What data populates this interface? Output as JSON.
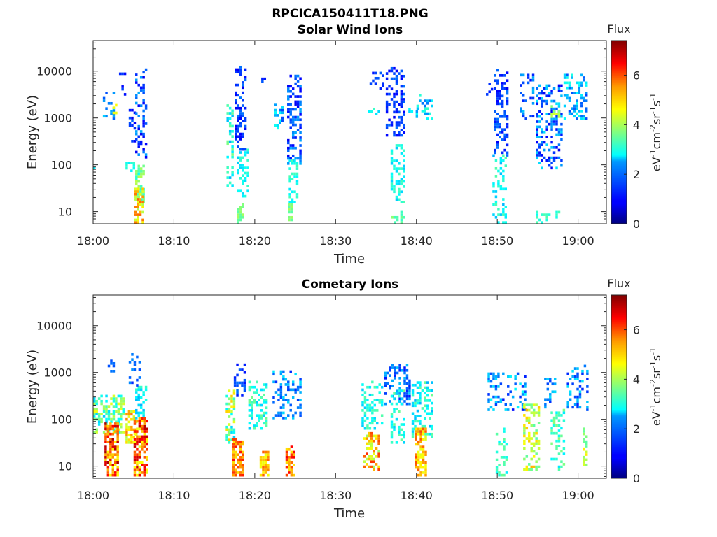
{
  "figure": {
    "title": "RPCICA150411T18.PNG",
    "background": "#ffffff"
  },
  "colorbar": {
    "title": "Flux",
    "label_parts": [
      "eV",
      "-1",
      "cm",
      "-2",
      "sr",
      "-1",
      "s",
      "-1"
    ],
    "ticks": [
      0,
      2,
      4,
      6
    ],
    "range": [
      0,
      7.4
    ],
    "colormap": "jet"
  },
  "chart_data": [
    {
      "type": "heatmap",
      "title": "Solar Wind Ions",
      "xlabel": "Time",
      "ylabel": "Energy (eV)",
      "x_ticks": [
        "18:00",
        "18:10",
        "18:20",
        "18:30",
        "18:40",
        "18:50",
        "19:00"
      ],
      "x_range_minutes": [
        0,
        63.5
      ],
      "y_scale": "log",
      "y_range": [
        5.5,
        45000
      ],
      "y_ticks": [
        10,
        100,
        1000,
        10000
      ],
      "y_tick_labels": [
        "10",
        "100",
        "1000",
        "10000"
      ],
      "clusters": [
        {
          "t_start": 0.0,
          "t_end": 0.3,
          "e_min": 70,
          "e_max": 110,
          "flux": [
            2.5,
            2.8
          ],
          "density": 0.5
        },
        {
          "t_start": 1.2,
          "t_end": 2.6,
          "e_min": 900,
          "e_max": 3500,
          "flux": [
            1.3,
            2.6
          ],
          "density": 0.3
        },
        {
          "t_start": 2.4,
          "t_end": 2.9,
          "e_min": 1200,
          "e_max": 1800,
          "flux": [
            4.0,
            5.0
          ],
          "density": 0.6
        },
        {
          "t_start": 3.2,
          "t_end": 4.0,
          "e_min": 3000,
          "e_max": 12000,
          "flux": [
            0.8,
            1.5
          ],
          "density": 0.25
        },
        {
          "t_start": 4.4,
          "t_end": 5.2,
          "e_min": 300,
          "e_max": 1500,
          "flux": [
            0.8,
            1.8
          ],
          "density": 0.35
        },
        {
          "t_start": 4.0,
          "t_end": 5.0,
          "e_min": 70,
          "e_max": 120,
          "flux": [
            2.6,
            3.2
          ],
          "density": 0.45
        },
        {
          "t_start": 5.2,
          "t_end": 6.6,
          "e_min": 120,
          "e_max": 11000,
          "flux": [
            0.8,
            2.2
          ],
          "density": 0.35
        },
        {
          "t_start": 5.2,
          "t_end": 6.3,
          "e_min": 15,
          "e_max": 90,
          "flux": [
            2.8,
            4.2
          ],
          "density": 0.55
        },
        {
          "t_start": 5.1,
          "t_end": 6.0,
          "e_min": 5.5,
          "e_max": 30,
          "flux": [
            3.8,
            5.8
          ],
          "density": 0.7
        },
        {
          "t_start": 16.5,
          "t_end": 17.2,
          "e_min": 30,
          "e_max": 1800,
          "flux": [
            2.2,
            3.8
          ],
          "density": 0.35
        },
        {
          "t_start": 17.5,
          "t_end": 19.0,
          "e_min": 200,
          "e_max": 13000,
          "flux": [
            0.8,
            1.8
          ],
          "density": 0.4
        },
        {
          "t_start": 17.8,
          "t_end": 19.2,
          "e_min": 20,
          "e_max": 200,
          "flux": [
            2.4,
            3.2
          ],
          "density": 0.4
        },
        {
          "t_start": 17.8,
          "t_end": 18.6,
          "e_min": 5.5,
          "e_max": 15,
          "flux": [
            3.4,
            4.0
          ],
          "density": 0.6
        },
        {
          "t_start": 20.8,
          "t_end": 21.4,
          "e_min": 5000,
          "e_max": 8000,
          "flux": [
            1.0,
            1.6
          ],
          "density": 0.4
        },
        {
          "t_start": 22.4,
          "t_end": 23.4,
          "e_min": 500,
          "e_max": 2000,
          "flux": [
            1.4,
            3.0
          ],
          "density": 0.3
        },
        {
          "t_start": 24.0,
          "t_end": 25.8,
          "e_min": 100,
          "e_max": 8000,
          "flux": [
            0.8,
            2.2
          ],
          "density": 0.4
        },
        {
          "t_start": 24.2,
          "t_end": 25.4,
          "e_min": 15,
          "e_max": 120,
          "flux": [
            2.6,
            3.4
          ],
          "density": 0.45
        },
        {
          "t_start": 24.1,
          "t_end": 24.6,
          "e_min": 5.5,
          "e_max": 15,
          "flux": [
            3.4,
            4.0
          ],
          "density": 0.7
        },
        {
          "t_start": 34.0,
          "t_end": 35.2,
          "e_min": 1000,
          "e_max": 1800,
          "flux": [
            2.4,
            3.2
          ],
          "density": 0.3
        },
        {
          "t_start": 34.2,
          "t_end": 35.8,
          "e_min": 4000,
          "e_max": 9000,
          "flux": [
            1.0,
            1.6
          ],
          "density": 0.25
        },
        {
          "t_start": 36.2,
          "t_end": 38.4,
          "e_min": 400,
          "e_max": 12000,
          "flux": [
            0.8,
            1.8
          ],
          "density": 0.4
        },
        {
          "t_start": 36.8,
          "t_end": 38.4,
          "e_min": 15,
          "e_max": 250,
          "flux": [
            2.4,
            3.4
          ],
          "density": 0.4
        },
        {
          "t_start": 36.9,
          "t_end": 37.5,
          "e_min": 5.5,
          "e_max": 8,
          "flux": [
            3.2,
            3.8
          ],
          "density": 0.6
        },
        {
          "t_start": 39.0,
          "t_end": 40.0,
          "e_min": 1000,
          "e_max": 1500,
          "flux": [
            2.0,
            2.8
          ],
          "density": 0.35
        },
        {
          "t_start": 40.0,
          "t_end": 41.9,
          "e_min": 900,
          "e_max": 3000,
          "flux": [
            1.6,
            3.2
          ],
          "density": 0.35
        },
        {
          "t_start": 38.0,
          "t_end": 38.5,
          "e_min": 5.5,
          "e_max": 10,
          "flux": [
            3.0,
            3.6
          ],
          "density": 0.5
        },
        {
          "t_start": 48.6,
          "t_end": 49.2,
          "e_min": 3000,
          "e_max": 5000,
          "flux": [
            1.0,
            1.5
          ],
          "density": 0.4
        },
        {
          "t_start": 49.6,
          "t_end": 51.2,
          "e_min": 150,
          "e_max": 11000,
          "flux": [
            0.8,
            1.8
          ],
          "density": 0.4
        },
        {
          "t_start": 49.4,
          "t_end": 51.0,
          "e_min": 5.5,
          "e_max": 150,
          "flux": [
            2.2,
            3.4
          ],
          "density": 0.3
        },
        {
          "t_start": 52.8,
          "t_end": 54.4,
          "e_min": 900,
          "e_max": 8000,
          "flux": [
            1.0,
            2.4
          ],
          "density": 0.3
        },
        {
          "t_start": 54.8,
          "t_end": 57.8,
          "e_min": 80,
          "e_max": 5000,
          "flux": [
            0.8,
            2.6
          ],
          "density": 0.35
        },
        {
          "t_start": 56.6,
          "t_end": 57.5,
          "e_min": 1000,
          "e_max": 1800,
          "flux": [
            3.6,
            4.4
          ],
          "density": 0.5
        },
        {
          "t_start": 54.8,
          "t_end": 57.5,
          "e_min": 5.5,
          "e_max": 10,
          "flux": [
            2.8,
            3.4
          ],
          "density": 0.35
        },
        {
          "t_start": 58.2,
          "t_end": 61.0,
          "e_min": 900,
          "e_max": 8000,
          "flux": [
            1.4,
            3.0
          ],
          "density": 0.3
        }
      ]
    },
    {
      "type": "heatmap",
      "title": "Cometary Ions",
      "xlabel": "Time",
      "ylabel": "Energy (eV)",
      "x_ticks": [
        "18:00",
        "18:10",
        "18:20",
        "18:30",
        "18:40",
        "18:50",
        "19:00"
      ],
      "x_range_minutes": [
        0,
        63.5
      ],
      "y_scale": "log",
      "y_range": [
        5.5,
        45000
      ],
      "y_ticks": [
        10,
        100,
        1000,
        10000
      ],
      "y_tick_labels": [
        "10",
        "100",
        "1000",
        "10000"
      ],
      "clusters": [
        {
          "t_start": 0.0,
          "t_end": 3.6,
          "e_min": 50,
          "e_max": 300,
          "flux": [
            2.4,
            4.6
          ],
          "density": 0.55
        },
        {
          "t_start": 1.4,
          "t_end": 3.1,
          "e_min": 6,
          "e_max": 80,
          "flux": [
            4.6,
            7.2
          ],
          "density": 0.7
        },
        {
          "t_start": 1.8,
          "t_end": 2.5,
          "e_min": 1000,
          "e_max": 2400,
          "flux": [
            1.4,
            1.8
          ],
          "density": 0.3
        },
        {
          "t_start": 4.0,
          "t_end": 5.4,
          "e_min": 30,
          "e_max": 150,
          "flux": [
            4.0,
            5.6
          ],
          "density": 0.6
        },
        {
          "t_start": 5.0,
          "t_end": 6.7,
          "e_min": 6,
          "e_max": 100,
          "flux": [
            4.4,
            7.0
          ],
          "density": 0.7
        },
        {
          "t_start": 5.2,
          "t_end": 6.6,
          "e_min": 100,
          "e_max": 500,
          "flux": [
            2.2,
            3.2
          ],
          "density": 0.45
        },
        {
          "t_start": 4.4,
          "t_end": 5.8,
          "e_min": 500,
          "e_max": 2300,
          "flux": [
            1.2,
            2.0
          ],
          "density": 0.25
        },
        {
          "t_start": 16.4,
          "t_end": 17.6,
          "e_min": 30,
          "e_max": 400,
          "flux": [
            2.4,
            5.0
          ],
          "density": 0.5
        },
        {
          "t_start": 17.2,
          "t_end": 18.6,
          "e_min": 6,
          "e_max": 40,
          "flux": [
            4.8,
            6.4
          ],
          "density": 0.7
        },
        {
          "t_start": 17.4,
          "t_end": 18.8,
          "e_min": 300,
          "e_max": 1400,
          "flux": [
            1.0,
            1.8
          ],
          "density": 0.35
        },
        {
          "t_start": 19.2,
          "t_end": 21.4,
          "e_min": 60,
          "e_max": 600,
          "flux": [
            2.4,
            3.6
          ],
          "density": 0.35
        },
        {
          "t_start": 20.6,
          "t_end": 21.6,
          "e_min": 6,
          "e_max": 20,
          "flux": [
            4.4,
            5.8
          ],
          "density": 0.7
        },
        {
          "t_start": 22.2,
          "t_end": 25.8,
          "e_min": 100,
          "e_max": 1000,
          "flux": [
            1.2,
            2.6
          ],
          "density": 0.35
        },
        {
          "t_start": 23.8,
          "t_end": 24.9,
          "e_min": 6,
          "e_max": 25,
          "flux": [
            4.8,
            6.6
          ],
          "density": 0.7
        },
        {
          "t_start": 33.2,
          "t_end": 35.6,
          "e_min": 60,
          "e_max": 600,
          "flux": [
            2.4,
            3.4
          ],
          "density": 0.3
        },
        {
          "t_start": 33.4,
          "t_end": 35.4,
          "e_min": 8,
          "e_max": 50,
          "flux": [
            3.8,
            6.2
          ],
          "density": 0.45
        },
        {
          "t_start": 36.0,
          "t_end": 39.0,
          "e_min": 200,
          "e_max": 1400,
          "flux": [
            1.0,
            2.4
          ],
          "density": 0.35
        },
        {
          "t_start": 36.8,
          "t_end": 38.4,
          "e_min": 30,
          "e_max": 400,
          "flux": [
            2.4,
            3.6
          ],
          "density": 0.35
        },
        {
          "t_start": 39.4,
          "t_end": 41.8,
          "e_min": 40,
          "e_max": 600,
          "flux": [
            2.2,
            3.6
          ],
          "density": 0.4
        },
        {
          "t_start": 39.8,
          "t_end": 41.0,
          "e_min": 6,
          "e_max": 60,
          "flux": [
            4.4,
            6.0
          ],
          "density": 0.65
        },
        {
          "t_start": 48.8,
          "t_end": 53.4,
          "e_min": 150,
          "e_max": 900,
          "flux": [
            1.0,
            2.8
          ],
          "density": 0.35
        },
        {
          "t_start": 49.8,
          "t_end": 51.2,
          "e_min": 6,
          "e_max": 60,
          "flux": [
            2.6,
            3.6
          ],
          "density": 0.3
        },
        {
          "t_start": 53.2,
          "t_end": 55.2,
          "e_min": 8,
          "e_max": 200,
          "flux": [
            3.4,
            5.2
          ],
          "density": 0.45
        },
        {
          "t_start": 55.8,
          "t_end": 57.2,
          "e_min": 150,
          "e_max": 800,
          "flux": [
            1.2,
            2.6
          ],
          "density": 0.3
        },
        {
          "t_start": 56.6,
          "t_end": 58.2,
          "e_min": 8,
          "e_max": 150,
          "flux": [
            2.6,
            3.8
          ],
          "density": 0.35
        },
        {
          "t_start": 58.6,
          "t_end": 61.0,
          "e_min": 150,
          "e_max": 1300,
          "flux": [
            1.2,
            2.6
          ],
          "density": 0.3
        },
        {
          "t_start": 60.6,
          "t_end": 61.0,
          "e_min": 10,
          "e_max": 60,
          "flux": [
            3.4,
            4.8
          ],
          "density": 0.6
        }
      ]
    }
  ]
}
